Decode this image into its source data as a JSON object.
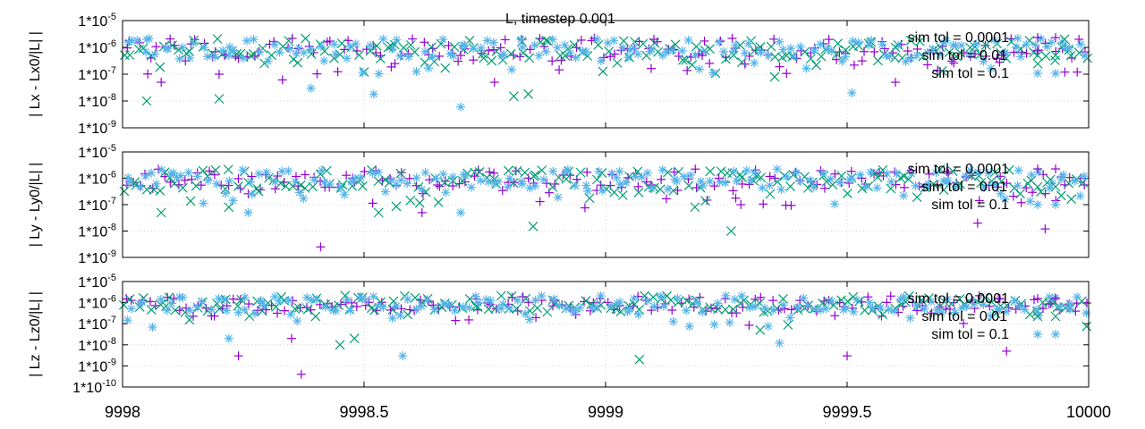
{
  "chart_data": {
    "type": "scatter",
    "title": "L, timestep 0.001",
    "x_range": [
      9998,
      10000
    ],
    "x_ticks": [
      "9998",
      "9998.5",
      "9999",
      "9999.5",
      "10000"
    ],
    "grid": true,
    "legend_placement": "top-right, inside each panel",
    "series_styles": [
      {
        "name": "sim tol = 0.0001",
        "marker": "+",
        "color": "#9400d3"
      },
      {
        "name": "sim tol = 0.01",
        "marker": "x",
        "color": "#009e73"
      },
      {
        "name": "sim tol = 0.1",
        "marker": "*",
        "color": "#56b4e9"
      }
    ],
    "panels": [
      {
        "ylabel": "| Lx - Lx0/|L| |",
        "y_scale": "log",
        "y_range": [
          1e-09,
          1e-05
        ],
        "y_ticks": [
          "1*10-9",
          "1*10-8",
          "1*10-7",
          "1*10-6",
          "1*10-5"
        ],
        "legend": [
          "sim tol = 0.0001",
          "sim tol = 0.01",
          "sim tol = 0.1"
        ],
        "series": [
          {
            "name": "sim tol = 0.0001",
            "points": [
              [
                9998.08,
                5e-08
              ],
              [
                9998.2,
                1e-07
              ],
              [
                9998.7,
                5e-07
              ],
              [
                9998.77,
                5e-08
              ],
              [
                9999.1,
                2e-06
              ],
              [
                9999.2,
                5e-07
              ],
              [
                9999.6,
                5e-08
              ],
              [
                9999.82,
                5e-07
              ],
              [
                9999.98,
                2e-06
              ]
            ]
          },
          {
            "name": "sim tol = 0.01",
            "points": [
              [
                9998.05,
                1e-08
              ],
              [
                9998.2,
                1.2e-08
              ],
              [
                9998.55,
                1e-06
              ],
              [
                9998.81,
                1.5e-08
              ],
              [
                9998.84,
                1.8e-08
              ],
              [
                9999.35,
                8e-08
              ],
              [
                9999.6,
                1e-06
              ],
              [
                9999.95,
                2e-06
              ]
            ]
          },
          {
            "name": "sim tol = 0.1",
            "points": [
              [
                9998.05,
                2e-06
              ],
              [
                9998.22,
                5e-07
              ],
              [
                9998.39,
                3e-08
              ],
              [
                9998.52,
                1.8e-08
              ],
              [
                9998.7,
                6e-09
              ],
              [
                9999.05,
                8e-07
              ],
              [
                9999.51,
                2e-08
              ],
              [
                9999.7,
                1.5e-06
              ],
              [
                9999.85,
                1e-06
              ]
            ]
          }
        ]
      },
      {
        "ylabel": "| Ly - Ly0/|L| |",
        "y_scale": "log",
        "y_range": [
          1e-09,
          1e-05
        ],
        "y_ticks": [
          "1*10-9",
          "1*10-8",
          "1*10-7",
          "1*10-6",
          "1*10-5"
        ],
        "legend": [
          "sim tol = 0.0001",
          "sim tol = 0.01",
          "sim tol = 0.1"
        ],
        "series": [
          {
            "name": "sim tol = 0.0001",
            "points": [
              [
                9998.41,
                2.5e-09
              ],
              [
                9998.62,
                5e-08
              ],
              [
                9999.28,
                1e-07
              ],
              [
                9999.91,
                1.2e-08
              ],
              [
                9999.77,
                2e-08
              ]
            ]
          },
          {
            "name": "sim tol = 0.01",
            "points": [
              [
                9998.08,
                5e-08
              ],
              [
                9998.22,
                8e-08
              ],
              [
                9998.53,
                5e-08
              ],
              [
                9998.85,
                1.5e-08
              ],
              [
                9999.26,
                1e-08
              ]
            ]
          },
          {
            "name": "sim tol = 0.1",
            "points": [
              [
                9998.1,
                1.5e-06
              ],
              [
                9998.26,
                5e-08
              ],
              [
                9998.7,
                5e-08
              ],
              [
                9999.03,
                6e-07
              ],
              [
                9999.7,
                8e-07
              ]
            ]
          }
        ]
      },
      {
        "ylabel": "| Lz - Lz0/|L| |",
        "y_scale": "log",
        "y_range": [
          1e-10,
          1e-05
        ],
        "y_ticks": [
          "1*10-10",
          "1*10-9",
          "1*10-8",
          "1*10-7",
          "1*10-6",
          "1*10-5"
        ],
        "legend": [
          "sim tol = 0.0001",
          "sim tol = 0.01",
          "sim tol = 0.1"
        ],
        "series": [
          {
            "name": "sim tol = 0.0001",
            "points": [
              [
                9998.24,
                3e-09
              ],
              [
                9998.37,
                4e-10
              ],
              [
                9998.35,
                2e-08
              ],
              [
                9999.5,
                3e-09
              ],
              [
                9999.83,
                5e-09
              ]
            ]
          },
          {
            "name": "sim tol = 0.01",
            "points": [
              [
                9998.45,
                1e-08
              ],
              [
                9998.48,
                2e-08
              ],
              [
                9999.07,
                2e-09
              ],
              [
                9999.32,
                5e-08
              ]
            ]
          },
          {
            "name": "sim tol = 0.1",
            "points": [
              [
                9998.22,
                2e-08
              ],
              [
                9998.58,
                3e-09
              ],
              [
                9999.36,
                1.2e-08
              ],
              [
                9999.05,
                5e-07
              ]
            ]
          }
        ]
      }
    ]
  }
}
